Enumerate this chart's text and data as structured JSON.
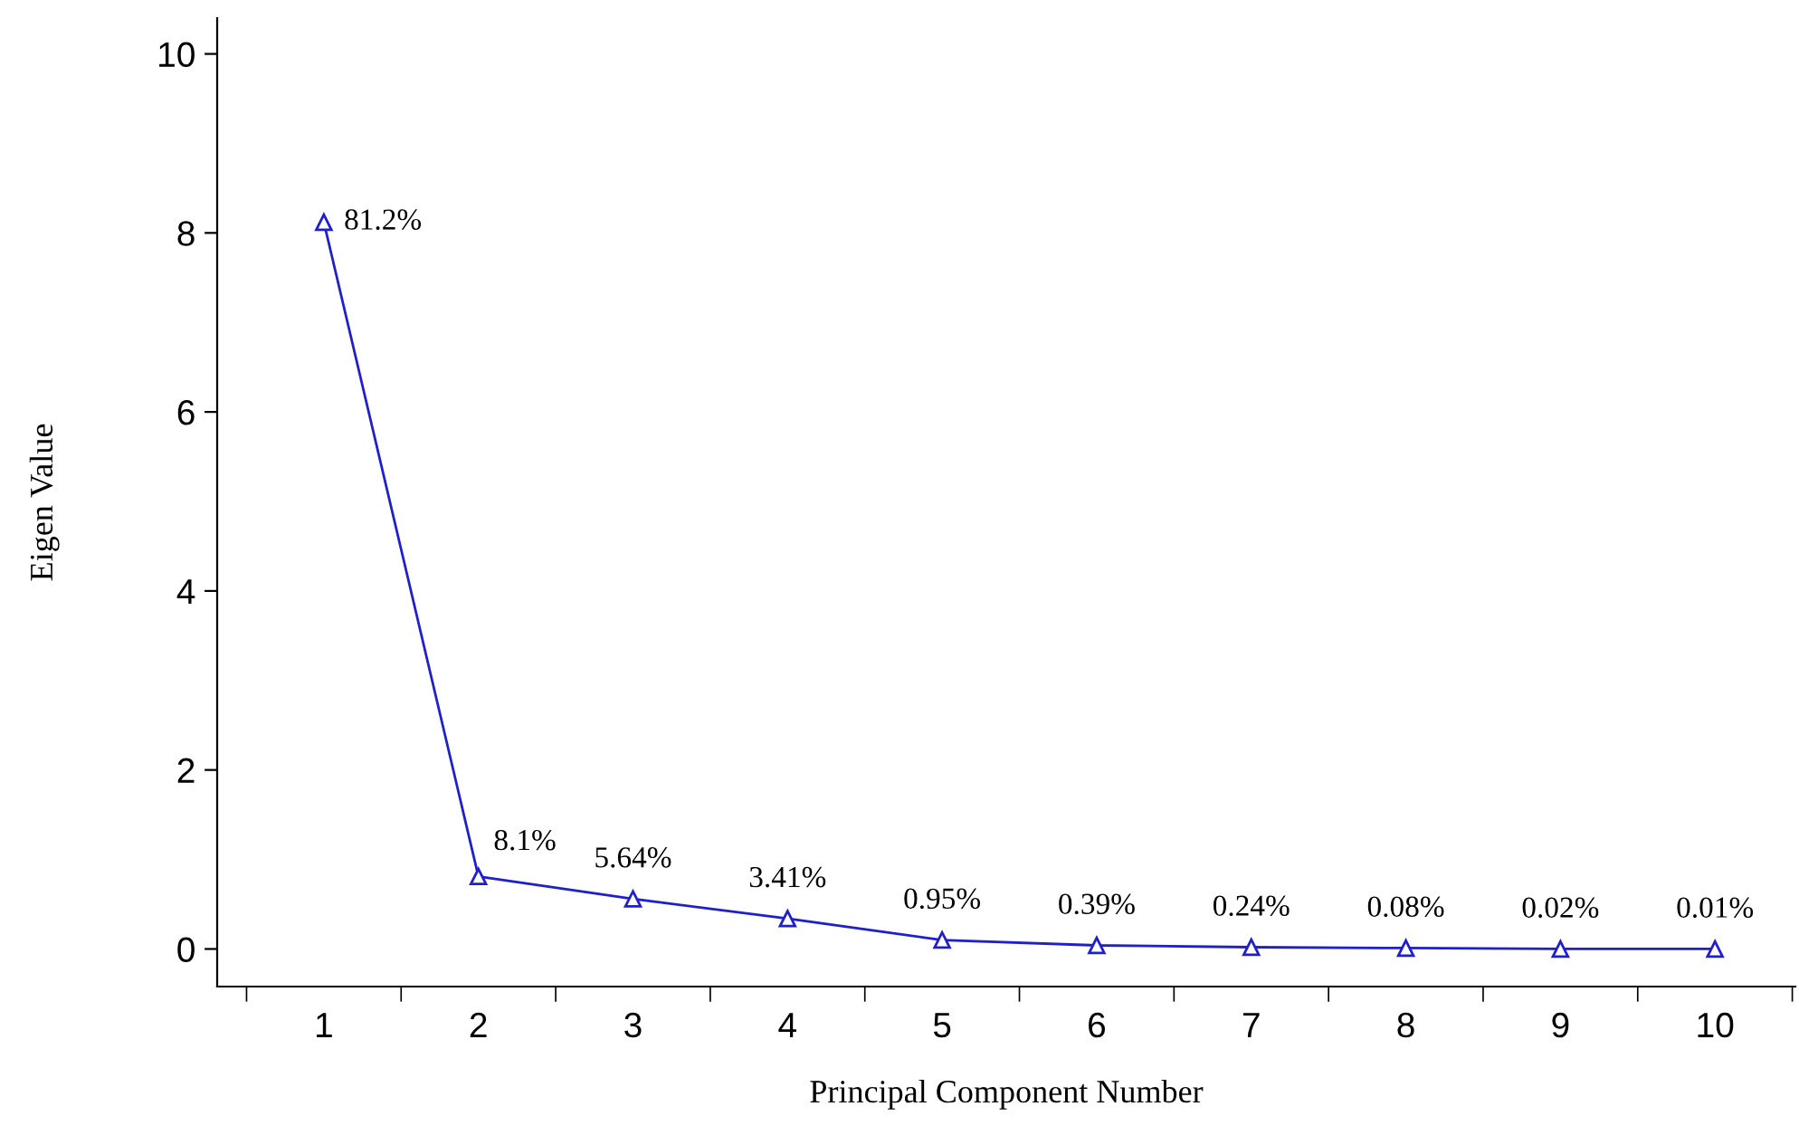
{
  "chart_data": {
    "type": "line",
    "xlabel": "Principal Component Number",
    "ylabel": "Eigen Value",
    "categories": [
      "1",
      "2",
      "3",
      "4",
      "5",
      "6",
      "7",
      "8",
      "9",
      "10"
    ],
    "series": [
      {
        "color": "#1f1fd0",
        "values": [
          8.12,
          0.81,
          0.56,
          0.34,
          0.1,
          0.04,
          0.02,
          0.01,
          0.0,
          0.0
        ]
      }
    ],
    "annotations": [
      {
        "text": "81.2%",
        "x": "1",
        "y": 8.12
      },
      {
        "text": "8.1%",
        "x": "2",
        "y": 0.81
      },
      {
        "text": "5.64%",
        "x": "3",
        "y": 0.56
      },
      {
        "text": "3.41%",
        "x": "4",
        "y": 0.34
      },
      {
        "text": "0.95%",
        "x": "5",
        "y": 0.1
      },
      {
        "text": "0.39%",
        "x": "6",
        "y": 0.04
      },
      {
        "text": "0.24%",
        "x": "7",
        "y": 0.02
      },
      {
        "text": "0.08%",
        "x": "8",
        "y": 0.01
      },
      {
        "text": "0.02%",
        "x": "9",
        "y": 0.0
      },
      {
        "text": "0.01%",
        "x": "10",
        "y": 0.0
      }
    ],
    "ylim": [
      -0.42,
      10.4
    ],
    "yticks": [
      0,
      2,
      4,
      6,
      8,
      10
    ],
    "marker": "triangle",
    "line_style": "solid",
    "grid": false,
    "legend": false
  }
}
